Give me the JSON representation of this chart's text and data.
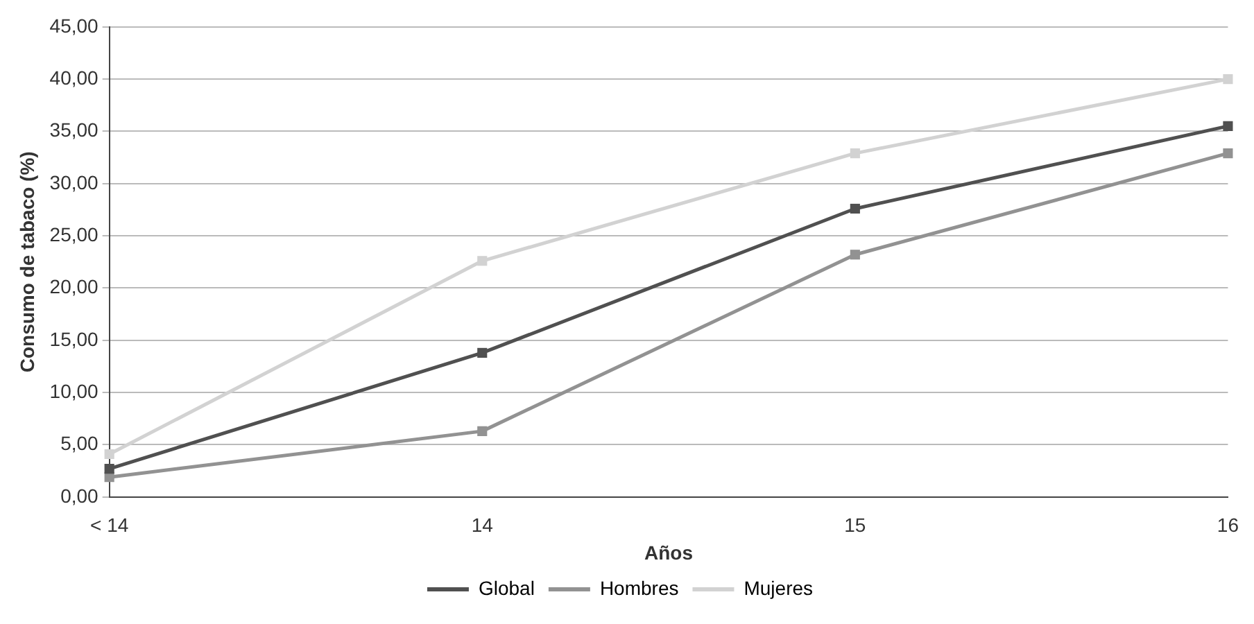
{
  "chart_data": {
    "type": "line",
    "xlabel": "Años",
    "ylabel": "Consumo de tabaco (%)",
    "categories": [
      "< 14",
      "14",
      "15",
      "16"
    ],
    "series": [
      {
        "name": "Global",
        "color": "#505050",
        "values": [
          2.7,
          13.8,
          27.6,
          35.5
        ]
      },
      {
        "name": "Hombres",
        "color": "#929292",
        "values": [
          1.9,
          6.3,
          23.2,
          32.9
        ]
      },
      {
        "name": "Mujeres",
        "color": "#d2d2d2",
        "values": [
          4.1,
          22.6,
          32.9,
          40.0
        ]
      }
    ],
    "ylim": [
      0,
      45
    ],
    "yticks": [
      {
        "value": 0,
        "label": "0,00"
      },
      {
        "value": 5,
        "label": "5,00"
      },
      {
        "value": 10,
        "label": "10,00"
      },
      {
        "value": 15,
        "label": "15,00"
      },
      {
        "value": 20,
        "label": "20,00"
      },
      {
        "value": 25,
        "label": "25,00"
      },
      {
        "value": 30,
        "label": "30,00"
      },
      {
        "value": 35,
        "label": "35,00"
      },
      {
        "value": 40,
        "label": "40,00"
      },
      {
        "value": 45,
        "label": "45,00"
      }
    ],
    "grid": "y",
    "legend": "bottom",
    "marker": "square",
    "line_style": "solid"
  }
}
